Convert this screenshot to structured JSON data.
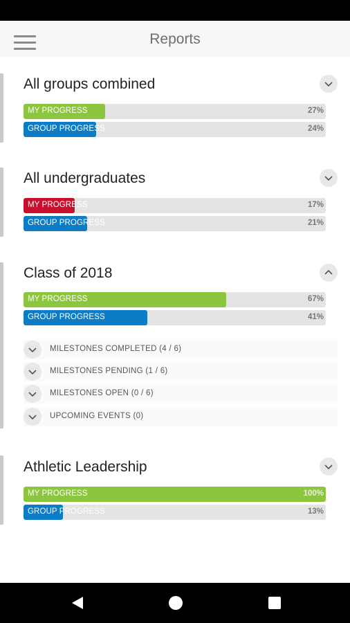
{
  "app_bar": {
    "title": "Reports"
  },
  "colors": {
    "my_green": "#8cc63f",
    "my_red": "#c8102e",
    "group_blue": "#0b7cc5"
  },
  "cards": [
    {
      "title": "All groups combined",
      "expanded": false,
      "my_progress": {
        "label": "MY PROGRESS",
        "percent_text": "27%",
        "value": 27,
        "color": "#8cc63f"
      },
      "group_progress": {
        "label": "GROUP PROGRESS",
        "percent_text": "24%",
        "value": 24,
        "color": "#0b7cc5"
      }
    },
    {
      "title": "All undergraduates",
      "expanded": false,
      "my_progress": {
        "label": "MY PROGRESS",
        "percent_text": "17%",
        "value": 17,
        "color": "#c8102e"
      },
      "group_progress": {
        "label": "GROUP PROGRESS",
        "percent_text": "21%",
        "value": 21,
        "color": "#0b7cc5"
      }
    },
    {
      "title": "Class of 2018",
      "expanded": true,
      "my_progress": {
        "label": "MY PROGRESS",
        "percent_text": "67%",
        "value": 67,
        "color": "#8cc63f"
      },
      "group_progress": {
        "label": "GROUP PROGRESS",
        "percent_text": "41%",
        "value": 41,
        "color": "#0b7cc5"
      },
      "milestones": [
        "MILESTONES COMPLETED (4 / 6)",
        "MILESTONES PENDING (1 / 6)",
        "MILESTONES OPEN (0 / 6)",
        "UPCOMING EVENTS (0)"
      ]
    },
    {
      "title": "Athletic Leadership",
      "expanded": false,
      "my_progress": {
        "label": "MY PROGRESS",
        "percent_text": "100%",
        "value": 100,
        "color": "#8cc63f"
      },
      "group_progress": {
        "label": "GROUP PROGRESS",
        "percent_text": "13%",
        "value": 13,
        "color": "#0b7cc5"
      }
    }
  ],
  "icons": {
    "menu": "hamburger-menu-icon",
    "collapsed": "chevron-down-icon",
    "expanded": "chevron-up-icon",
    "nav_back": "back-triangle-icon",
    "nav_home": "home-circle-icon",
    "nav_recents": "recents-square-icon"
  }
}
